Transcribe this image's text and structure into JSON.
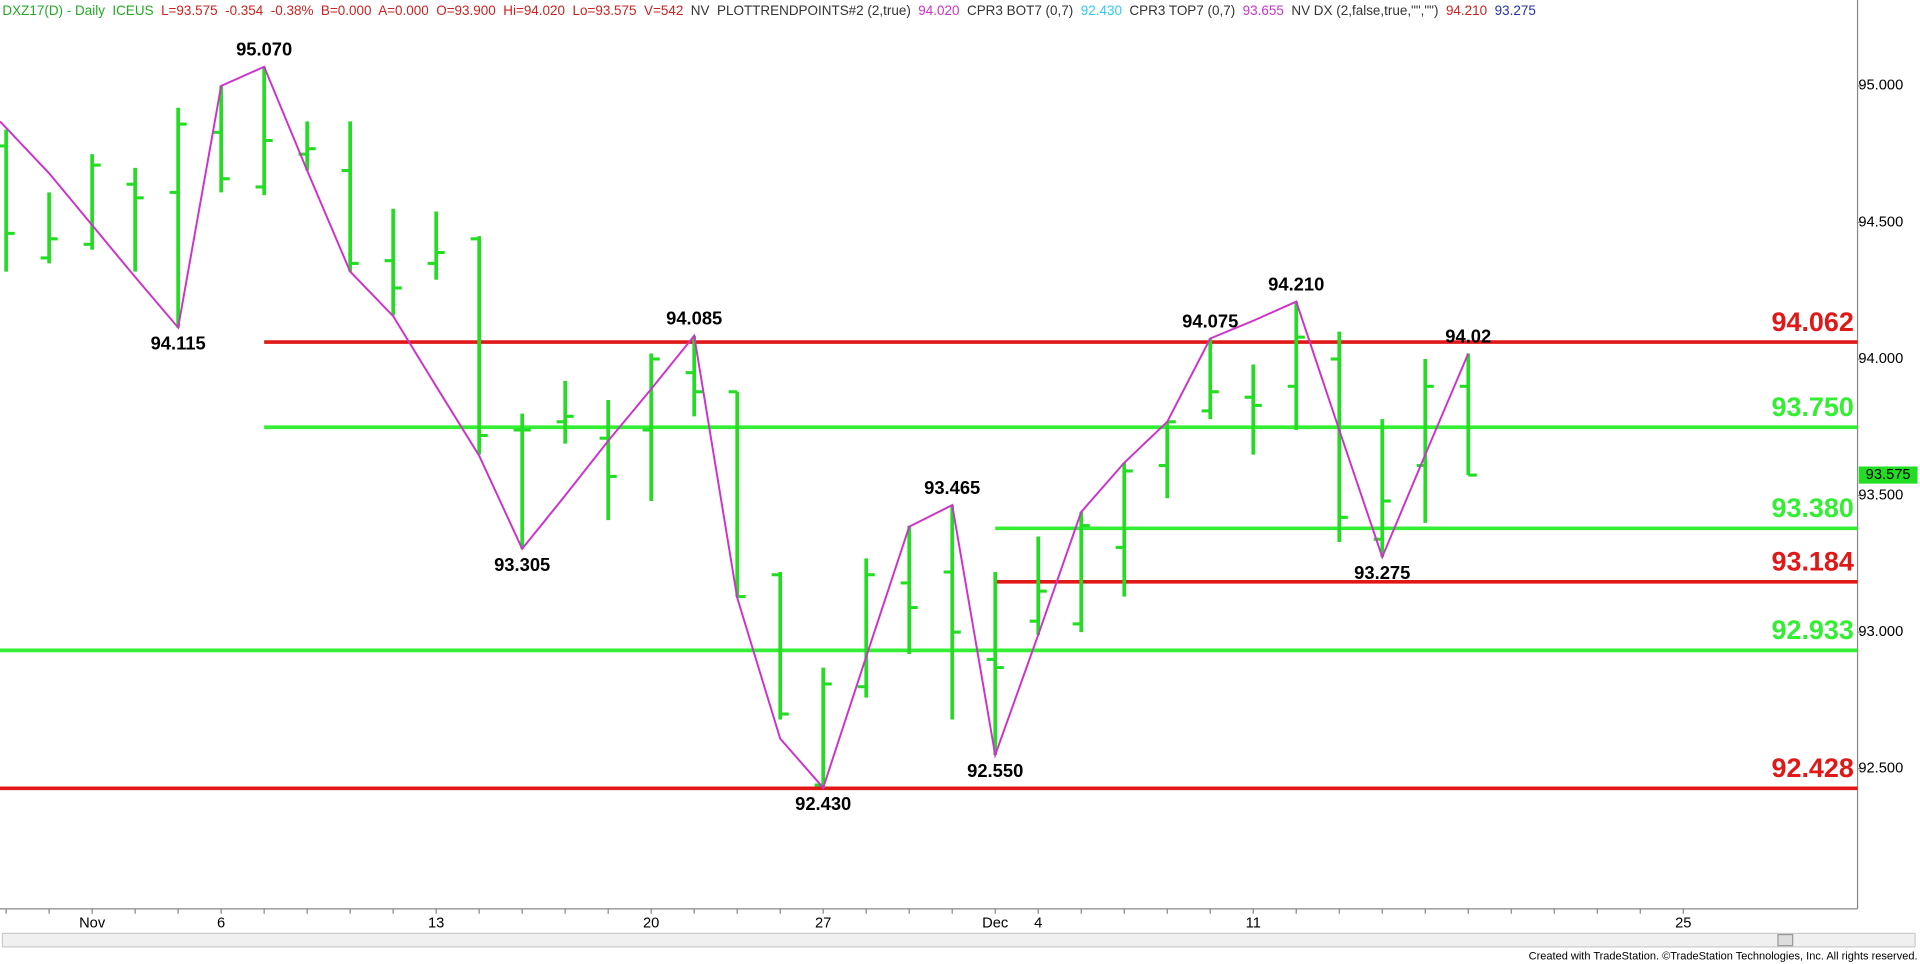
{
  "chart_data": {
    "type": "ohlc",
    "header": [
      {
        "text": "DXZ17(D) - Daily  ICEUS  ",
        "color": "#22aa22"
      },
      {
        "text": "L=93.575  -0.354  -0.38%  B=0.000  A=0.000  O=93.900  Hi=94.020  Lo=93.575  V=542  ",
        "color": "#cc2222"
      },
      {
        "text": "NV  PLOTTRENDPOINTS#2 (2,true)  ",
        "color": "#333333"
      },
      {
        "text": "94.020  ",
        "color": "#cc33cc"
      },
      {
        "text": "CPR3 BOT7 (0,7)  ",
        "color": "#333333"
      },
      {
        "text": "92.430  ",
        "color": "#33ccee"
      },
      {
        "text": "CPR3 TOP7 (0,7)  ",
        "color": "#333333"
      },
      {
        "text": "93.655  ",
        "color": "#cc33cc"
      },
      {
        "text": "NV DX (2,false,true,\"\",\"\")  ",
        "color": "#333333"
      },
      {
        "text": "94.210  ",
        "color": "#cc2222"
      },
      {
        "text": "93.275",
        "color": "#2233aa"
      }
    ],
    "categories": [
      null,
      null,
      "Nov",
      null,
      null,
      "6",
      null,
      null,
      null,
      null,
      "13",
      null,
      null,
      null,
      null,
      "20",
      null,
      null,
      null,
      "27",
      null,
      null,
      null,
      "Dec",
      "4",
      null,
      null,
      null,
      null,
      "11",
      null,
      null,
      null,
      null,
      null,
      null,
      null,
      null,
      null,
      "25"
    ],
    "open": [
      94.78,
      94.37,
      94.42,
      94.64,
      94.61,
      94.83,
      94.63,
      94.75,
      94.69,
      94.36,
      94.35,
      94.44,
      93.74,
      93.77,
      93.71,
      93.74,
      93.95,
      93.88,
      93.21,
      92.44,
      92.8,
      93.18,
      93.22,
      92.9,
      93.04,
      93.03,
      93.31,
      93.61,
      93.81,
      93.86,
      93.9,
      94.0,
      93.34,
      93.61,
      93.9,
      null,
      null,
      null,
      null,
      null
    ],
    "high": [
      94.84,
      94.61,
      94.75,
      94.7,
      94.92,
      95.0,
      95.07,
      94.87,
      94.87,
      94.55,
      94.54,
      94.45,
      93.8,
      93.92,
      93.85,
      94.02,
      94.085,
      93.88,
      93.22,
      92.87,
      93.27,
      93.39,
      93.465,
      93.22,
      93.35,
      93.44,
      93.62,
      93.77,
      94.075,
      93.98,
      94.21,
      94.1,
      93.78,
      94.0,
      94.02,
      null,
      null,
      null,
      null,
      null
    ],
    "low": [
      94.32,
      94.35,
      94.4,
      94.32,
      94.115,
      94.61,
      94.6,
      94.69,
      94.32,
      94.16,
      94.29,
      93.65,
      93.305,
      93.69,
      93.41,
      93.48,
      93.79,
      93.13,
      92.68,
      92.43,
      92.76,
      92.92,
      92.68,
      92.55,
      92.99,
      93.0,
      93.13,
      93.49,
      93.78,
      93.65,
      93.74,
      93.33,
      93.275,
      93.4,
      93.575,
      null,
      null,
      null,
      null,
      null
    ],
    "close": [
      94.46,
      94.44,
      94.71,
      94.59,
      94.86,
      94.66,
      94.8,
      94.77,
      94.35,
      94.26,
      94.39,
      93.72,
      93.74,
      93.79,
      93.57,
      94.0,
      93.88,
      93.13,
      92.7,
      92.81,
      93.21,
      93.09,
      93.0,
      92.87,
      93.15,
      93.39,
      93.59,
      93.77,
      93.88,
      93.83,
      94.08,
      93.42,
      93.48,
      93.9,
      93.575,
      null,
      null,
      null,
      null,
      null
    ],
    "bar_color": "#22dd22",
    "trend": {
      "color": "#cc33cc",
      "values": [
        94.87,
        94.68,
        94.49,
        94.3,
        94.115,
        95.0,
        95.07,
        94.69,
        94.32,
        94.157,
        93.9,
        93.646,
        93.305,
        93.5,
        93.7,
        93.89,
        94.085,
        93.126,
        92.61,
        92.43,
        92.91,
        93.386,
        93.465,
        92.55,
        92.99,
        93.44,
        93.62,
        93.77,
        94.075,
        94.14,
        94.21,
        93.74,
        93.275,
        93.65,
        94.02,
        null,
        null,
        null,
        null,
        null
      ],
      "value_labels": [
        null,
        null,
        null,
        null,
        "94.115",
        null,
        "95.070",
        null,
        null,
        null,
        null,
        null,
        "93.305",
        null,
        null,
        null,
        "94.085",
        null,
        null,
        "92.430",
        null,
        null,
        "93.465",
        "92.550",
        null,
        null,
        null,
        null,
        "94.075",
        null,
        "94.210",
        null,
        "93.275",
        null,
        "94.02",
        null,
        null,
        null,
        null,
        null
      ]
    },
    "levels": [
      {
        "value": 94.062,
        "color": "#e01818"
      },
      {
        "value": 93.75,
        "value_label": "93.750",
        "color": "#33ee33"
      },
      {
        "value": 93.38,
        "value_label": "93.380",
        "color": "#33ee33"
      },
      {
        "value": 93.184,
        "color": "#e01818"
      },
      {
        "value": 92.933,
        "color": "#33ee33"
      },
      {
        "value": 92.428,
        "color": "#e01818"
      }
    ],
    "last_price": 93.575,
    "last_price_color": "#22dd22",
    "ylim": [
      92.0,
      95.31
    ],
    "yticks": [
      {
        "value": 92.5,
        "label": "92.500"
      },
      {
        "value": 93,
        "label": "93.000"
      },
      {
        "value": 93.5,
        "label": "93.500"
      },
      {
        "value": 94,
        "label": "94.000"
      },
      {
        "value": 94.5,
        "label": "94.500"
      },
      {
        "value": 95,
        "label": "95.000"
      }
    ],
    "footer": "Created with TradeStation. ©TradeStation Technologies, Inc. All rights reserved."
  }
}
